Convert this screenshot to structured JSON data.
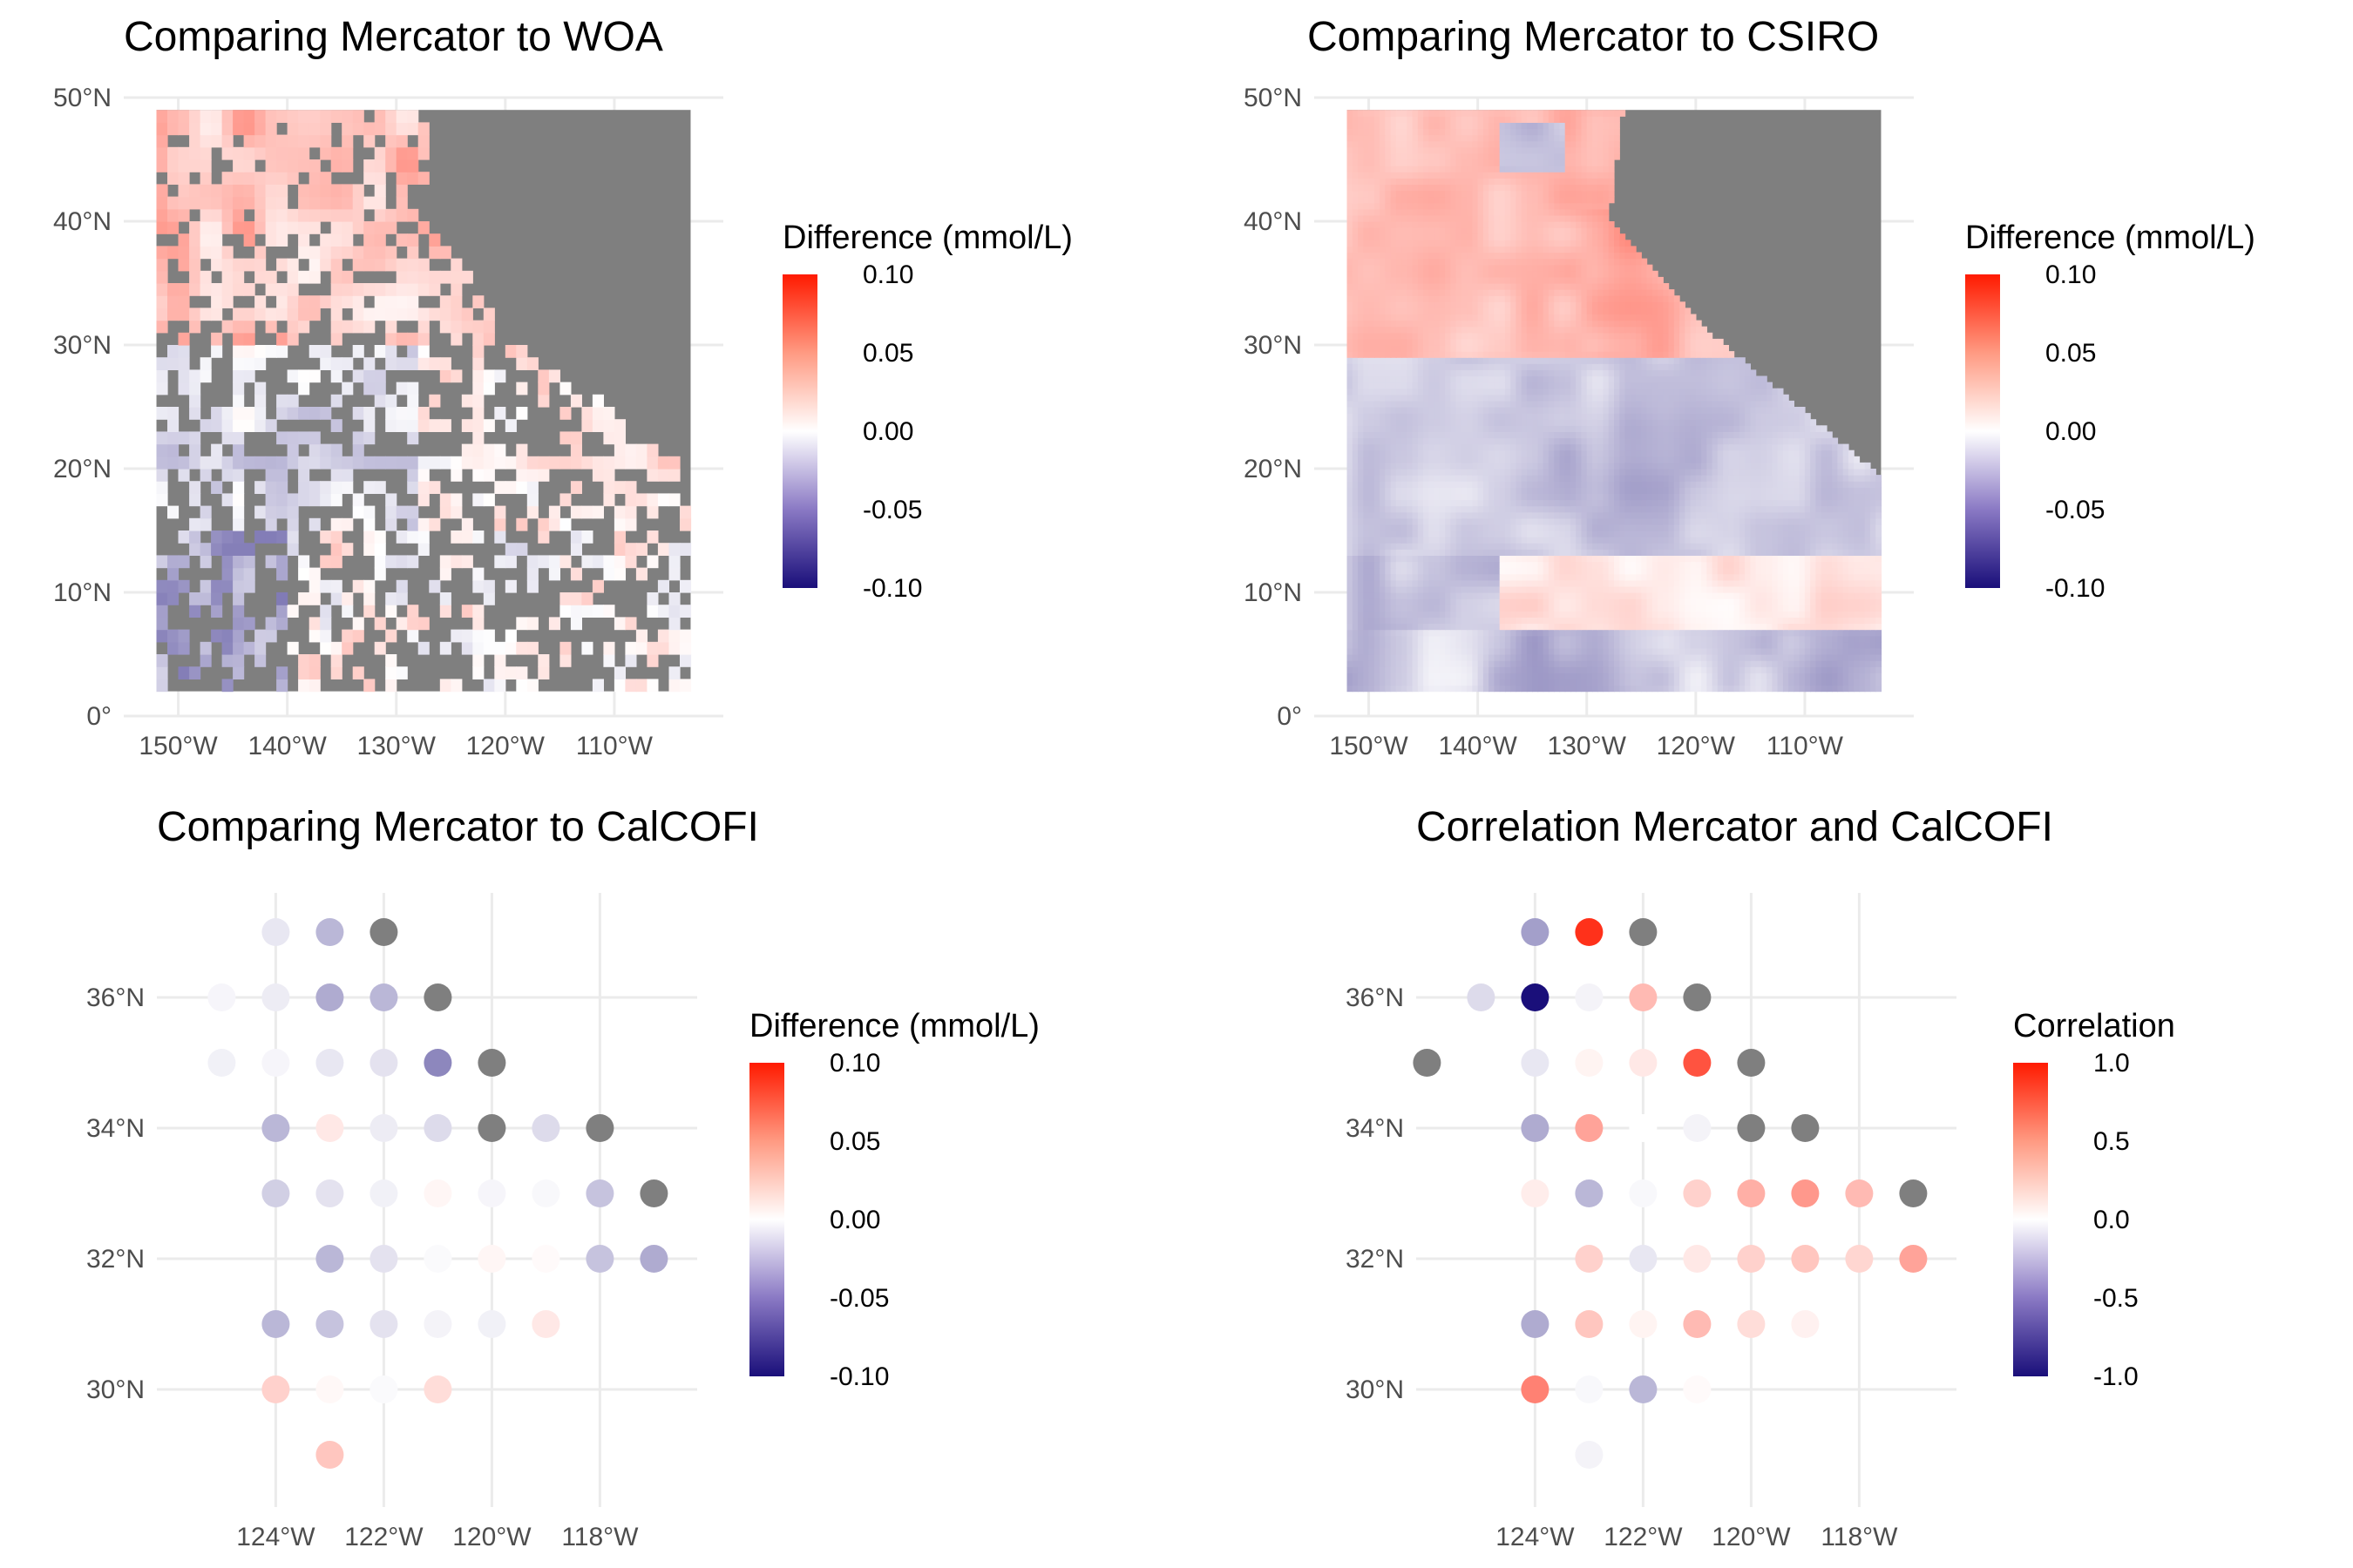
{
  "colors": {
    "low": "#1a0f7a",
    "mid": "#ffffff",
    "high": "#ff1a00",
    "na": "#7f7f7f",
    "grid": "#ebebeb"
  },
  "chart_data": [
    {
      "id": "woa",
      "type": "heatmap",
      "title": "Comparing Mercator to WOA",
      "xlabel": "",
      "ylabel": "",
      "xlim": [
        -155,
        -100
      ],
      "ylim": [
        0,
        50
      ],
      "x_ticks": [
        -150,
        -140,
        -130,
        -120,
        -110
      ],
      "x_tick_labels": [
        "150°W",
        "140°W",
        "130°W",
        "120°W",
        "110°W"
      ],
      "y_ticks": [
        0,
        10,
        20,
        30,
        40,
        50
      ],
      "y_tick_labels": [
        "0°",
        "10°N",
        "20°N",
        "30°N",
        "40°N",
        "50°N"
      ],
      "grid_extent": {
        "lon": [
          -152,
          -103
        ],
        "lat": [
          2,
          49
        ]
      },
      "legend": {
        "title": "Difference (mmol/L)",
        "breaks": [
          "0.10",
          "0.05",
          "0.00",
          "-0.05",
          "-0.10"
        ],
        "limits": [
          -0.1,
          0.1
        ],
        "position": "right"
      }
    },
    {
      "id": "csiro",
      "type": "heatmap",
      "title": "Comparing Mercator to CSIRO",
      "xlabel": "",
      "ylabel": "",
      "xlim": [
        -155,
        -100
      ],
      "ylim": [
        0,
        50
      ],
      "x_ticks": [
        -150,
        -140,
        -130,
        -120,
        -110
      ],
      "x_tick_labels": [
        "150°W",
        "140°W",
        "130°W",
        "120°W",
        "110°W"
      ],
      "y_ticks": [
        0,
        10,
        20,
        30,
        40,
        50
      ],
      "y_tick_labels": [
        "0°",
        "10°N",
        "20°N",
        "30°N",
        "40°N",
        "50°N"
      ],
      "grid_extent": {
        "lon": [
          -152,
          -103
        ],
        "lat": [
          2,
          49
        ]
      },
      "legend": {
        "title": "Difference (mmol/L)",
        "breaks": [
          "0.10",
          "0.05",
          "0.00",
          "-0.05",
          "-0.10"
        ],
        "limits": [
          -0.1,
          0.1
        ],
        "position": "right"
      }
    },
    {
      "id": "calcofi_diff",
      "type": "scatter",
      "title": "Comparing Mercator to CalCOFI",
      "xlabel": "",
      "ylabel": "",
      "xlim": [
        -126.2,
        -116.2
      ],
      "ylim": [
        28.2,
        37.6
      ],
      "x_ticks": [
        -124,
        -122,
        -120,
        -118
      ],
      "x_tick_labels": [
        "124°W",
        "122°W",
        "120°W",
        "118°W"
      ],
      "y_ticks": [
        30,
        32,
        34,
        36
      ],
      "y_tick_labels": [
        "30°N",
        "32°N",
        "34°N",
        "36°N"
      ],
      "legend": {
        "title": "Difference (mmol/L)",
        "breaks": [
          "0.10",
          "0.05",
          "0.00",
          "-0.05",
          "-0.10"
        ],
        "limits": [
          -0.1,
          0.1
        ],
        "position": "right"
      },
      "points": [
        {
          "lon": -124,
          "lat": 37,
          "value": -0.01
        },
        {
          "lon": -123,
          "lat": 37,
          "value": -0.03
        },
        {
          "lon": -122,
          "lat": 37,
          "value": null
        },
        {
          "lon": -125,
          "lat": 36,
          "value": -0.004
        },
        {
          "lon": -124,
          "lat": 36,
          "value": -0.008
        },
        {
          "lon": -123,
          "lat": 36,
          "value": -0.035
        },
        {
          "lon": -122,
          "lat": 36,
          "value": -0.03
        },
        {
          "lon": -121,
          "lat": 36,
          "value": null
        },
        {
          "lon": -125,
          "lat": 35,
          "value": -0.006
        },
        {
          "lon": -124,
          "lat": 35,
          "value": -0.004
        },
        {
          "lon": -123,
          "lat": 35,
          "value": -0.01
        },
        {
          "lon": -122,
          "lat": 35,
          "value": -0.012
        },
        {
          "lon": -121,
          "lat": 35,
          "value": -0.05
        },
        {
          "lon": -120,
          "lat": 35,
          "value": null
        },
        {
          "lon": -124,
          "lat": 34,
          "value": -0.03
        },
        {
          "lon": -123,
          "lat": 34,
          "value": 0.01
        },
        {
          "lon": -122,
          "lat": 34,
          "value": -0.008
        },
        {
          "lon": -121,
          "lat": 34,
          "value": -0.015
        },
        {
          "lon": -120,
          "lat": 34,
          "value": null
        },
        {
          "lon": -119,
          "lat": 34,
          "value": -0.015
        },
        {
          "lon": -118,
          "lat": 34,
          "value": null
        },
        {
          "lon": -124,
          "lat": 33,
          "value": -0.02
        },
        {
          "lon": -123,
          "lat": 33,
          "value": -0.012
        },
        {
          "lon": -122,
          "lat": 33,
          "value": -0.006
        },
        {
          "lon": -121,
          "lat": 33,
          "value": 0.004
        },
        {
          "lon": -120,
          "lat": 33,
          "value": -0.004
        },
        {
          "lon": -119,
          "lat": 33,
          "value": -0.003
        },
        {
          "lon": -118,
          "lat": 33,
          "value": -0.025
        },
        {
          "lon": -117,
          "lat": 33,
          "value": null
        },
        {
          "lon": -123,
          "lat": 32,
          "value": -0.03
        },
        {
          "lon": -122,
          "lat": 32,
          "value": -0.012
        },
        {
          "lon": -121,
          "lat": 32,
          "value": -0.002
        },
        {
          "lon": -120,
          "lat": 32,
          "value": 0.004
        },
        {
          "lon": -119,
          "lat": 32,
          "value": 0.002
        },
        {
          "lon": -118,
          "lat": 32,
          "value": -0.025
        },
        {
          "lon": -117,
          "lat": 32,
          "value": -0.035
        },
        {
          "lon": -124,
          "lat": 31,
          "value": -0.03
        },
        {
          "lon": -123,
          "lat": 31,
          "value": -0.025
        },
        {
          "lon": -122,
          "lat": 31,
          "value": -0.012
        },
        {
          "lon": -121,
          "lat": 31,
          "value": -0.005
        },
        {
          "lon": -120,
          "lat": 31,
          "value": -0.006
        },
        {
          "lon": -119,
          "lat": 31,
          "value": 0.01
        },
        {
          "lon": -124,
          "lat": 30,
          "value": 0.02
        },
        {
          "lon": -123,
          "lat": 30,
          "value": 0.003
        },
        {
          "lon": -122,
          "lat": 30,
          "value": -0.002
        },
        {
          "lon": -121,
          "lat": 30,
          "value": 0.015
        },
        {
          "lon": -123,
          "lat": 29,
          "value": 0.025
        }
      ]
    },
    {
      "id": "calcofi_corr",
      "type": "scatter",
      "title": "Correlation Mercator and CalCOFI",
      "xlabel": "",
      "ylabel": "",
      "xlim": [
        -126.2,
        -116.2
      ],
      "ylim": [
        28.2,
        37.6
      ],
      "x_ticks": [
        -124,
        -122,
        -120,
        -118
      ],
      "x_tick_labels": [
        "124°W",
        "122°W",
        "120°W",
        "118°W"
      ],
      "y_ticks": [
        30,
        32,
        34,
        36
      ],
      "y_tick_labels": [
        "30°N",
        "32°N",
        "34°N",
        "36°N"
      ],
      "legend": {
        "title": "Correlation",
        "breaks": [
          "1.0",
          "0.5",
          "0.0",
          "-0.5",
          "-1.0"
        ],
        "limits": [
          -1,
          1
        ],
        "position": "right"
      },
      "points": [
        {
          "lon": -124,
          "lat": 37,
          "value": -0.4
        },
        {
          "lon": -123,
          "lat": 37,
          "value": 0.9
        },
        {
          "lon": -122,
          "lat": 37,
          "value": null
        },
        {
          "lon": -125,
          "lat": 36,
          "value": -0.15
        },
        {
          "lon": -124,
          "lat": 36,
          "value": -1.0
        },
        {
          "lon": -123,
          "lat": 36,
          "value": -0.05
        },
        {
          "lon": -122,
          "lat": 36,
          "value": 0.3
        },
        {
          "lon": -121,
          "lat": 36,
          "value": null
        },
        {
          "lon": -126,
          "lat": 35,
          "value": null
        },
        {
          "lon": -124,
          "lat": 35,
          "value": -0.1
        },
        {
          "lon": -123,
          "lat": 35,
          "value": 0.05
        },
        {
          "lon": -122,
          "lat": 35,
          "value": 0.1
        },
        {
          "lon": -121,
          "lat": 35,
          "value": 0.75
        },
        {
          "lon": -120,
          "lat": 35,
          "value": null
        },
        {
          "lon": -124,
          "lat": 34,
          "value": -0.35
        },
        {
          "lon": -123,
          "lat": 34,
          "value": 0.4
        },
        {
          "lon": -122,
          "lat": 34,
          "value": 0.0
        },
        {
          "lon": -121,
          "lat": 34,
          "value": -0.05
        },
        {
          "lon": -120,
          "lat": 34,
          "value": null
        },
        {
          "lon": -119,
          "lat": 34,
          "value": null
        },
        {
          "lon": -124,
          "lat": 33,
          "value": 0.08
        },
        {
          "lon": -123,
          "lat": 33,
          "value": -0.3
        },
        {
          "lon": -122,
          "lat": 33,
          "value": -0.03
        },
        {
          "lon": -121,
          "lat": 33,
          "value": 0.2
        },
        {
          "lon": -120,
          "lat": 33,
          "value": 0.35
        },
        {
          "lon": -119,
          "lat": 33,
          "value": 0.45
        },
        {
          "lon": -118,
          "lat": 33,
          "value": 0.3
        },
        {
          "lon": -117,
          "lat": 33,
          "value": null
        },
        {
          "lon": -123,
          "lat": 32,
          "value": 0.2
        },
        {
          "lon": -122,
          "lat": 32,
          "value": -0.1
        },
        {
          "lon": -121,
          "lat": 32,
          "value": 0.1
        },
        {
          "lon": -120,
          "lat": 32,
          "value": 0.2
        },
        {
          "lon": -119,
          "lat": 32,
          "value": 0.25
        },
        {
          "lon": -118,
          "lat": 32,
          "value": 0.18
        },
        {
          "lon": -117,
          "lat": 32,
          "value": 0.4
        },
        {
          "lon": -124,
          "lat": 31,
          "value": -0.35
        },
        {
          "lon": -123,
          "lat": 31,
          "value": 0.25
        },
        {
          "lon": -122,
          "lat": 31,
          "value": 0.05
        },
        {
          "lon": -121,
          "lat": 31,
          "value": 0.3
        },
        {
          "lon": -120,
          "lat": 31,
          "value": 0.15
        },
        {
          "lon": -119,
          "lat": 31,
          "value": 0.06
        },
        {
          "lon": -124,
          "lat": 30,
          "value": 0.55
        },
        {
          "lon": -123,
          "lat": 30,
          "value": -0.03
        },
        {
          "lon": -122,
          "lat": 30,
          "value": -0.3
        },
        {
          "lon": -121,
          "lat": 30,
          "value": 0.02
        },
        {
          "lon": -123,
          "lat": 29,
          "value": -0.05
        }
      ]
    }
  ]
}
